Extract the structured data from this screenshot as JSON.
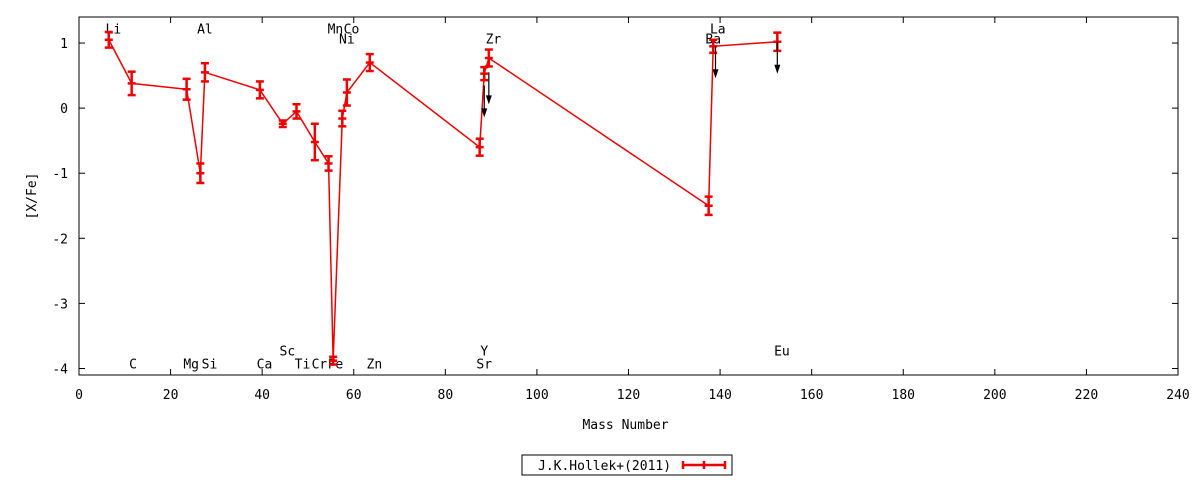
{
  "chart_data": {
    "type": "line",
    "xlabel": "Mass Number",
    "ylabel": "[X/Fe]",
    "xlim": [
      0,
      240
    ],
    "ylim": [
      -4.1,
      1.4
    ],
    "xticks": [
      0,
      20,
      40,
      60,
      80,
      100,
      120,
      140,
      160,
      180,
      200,
      220,
      240
    ],
    "yticks": [
      1,
      0,
      -1,
      -2,
      -3,
      -4
    ],
    "grid": false,
    "legend_position": "bottom-center",
    "series": [
      {
        "name": "J.K.Hollek+(2011)",
        "color": "#ee0000",
        "points": [
          {
            "x": 6.5,
            "y": 1.05,
            "err": 0.12
          },
          {
            "x": 11.5,
            "y": 0.38,
            "err": 0.18
          },
          {
            "x": 23.5,
            "y": 0.29,
            "err": 0.16
          },
          {
            "x": 26.5,
            "y": -1.0,
            "err": 0.15
          },
          {
            "x": 27.5,
            "y": 0.55,
            "err": 0.14
          },
          {
            "x": 39.5,
            "y": 0.28,
            "err": 0.13
          },
          {
            "x": 44.5,
            "y": -0.24,
            "err": 0.05
          },
          {
            "x": 47.5,
            "y": -0.05,
            "err": 0.11
          },
          {
            "x": 51.5,
            "y": -0.52,
            "err": 0.28
          },
          {
            "x": 54.5,
            "y": -0.85,
            "err": 0.11
          },
          {
            "x": 55.5,
            "y": -3.88,
            "err": 0.06
          },
          {
            "x": 57.5,
            "y": -0.16,
            "err": 0.12
          },
          {
            "x": 58.5,
            "y": 0.24,
            "err": 0.2
          },
          {
            "x": 63.5,
            "y": 0.7,
            "err": 0.13
          },
          {
            "x": 87.5,
            "y": -0.6,
            "err": 0.13
          },
          {
            "x": 88.5,
            "y": 0.53,
            "err": 0.1
          },
          {
            "x": 89.5,
            "y": 0.77,
            "err": 0.13
          },
          {
            "x": 137.5,
            "y": -1.5,
            "err": 0.14
          },
          {
            "x": 138.5,
            "y": 0.95,
            "err": 0.1
          },
          {
            "x": 152.5,
            "y": 1.02,
            "err": 0.14
          }
        ]
      }
    ],
    "upper_limits": [
      {
        "x": 88.5,
        "y": 0.35
      },
      {
        "x": 89.5,
        "y": 0.55
      },
      {
        "x": 139.0,
        "y": 0.95
      },
      {
        "x": 152.5,
        "y": 1.02
      }
    ],
    "element_labels": [
      {
        "text": "Li",
        "x": 7.5,
        "y": 1.22
      },
      {
        "text": "Al",
        "x": 27.5,
        "y": 1.22
      },
      {
        "text": "Mn",
        "x": 56.0,
        "y": 1.22
      },
      {
        "text": "Co",
        "x": 59.5,
        "y": 1.22
      },
      {
        "text": "Ni",
        "x": 58.5,
        "y": 1.07
      },
      {
        "text": "Zr",
        "x": 90.5,
        "y": 1.07
      },
      {
        "text": "La",
        "x": 139.5,
        "y": 1.22
      },
      {
        "text": "Ba",
        "x": 138.5,
        "y": 1.07
      },
      {
        "text": "C",
        "x": 11.8,
        "y": -3.92
      },
      {
        "text": "Mg",
        "x": 24.5,
        "y": -3.92
      },
      {
        "text": "Si",
        "x": 28.5,
        "y": -3.92
      },
      {
        "text": "Ca",
        "x": 40.5,
        "y": -3.92
      },
      {
        "text": "Sc",
        "x": 45.5,
        "y": -3.72
      },
      {
        "text": "Ti",
        "x": 48.8,
        "y": -3.92
      },
      {
        "text": "Cr",
        "x": 52.5,
        "y": -3.92
      },
      {
        "text": "Fe",
        "x": 56.0,
        "y": -3.92
      },
      {
        "text": "Zn",
        "x": 64.5,
        "y": -3.92
      },
      {
        "text": "Y",
        "x": 88.5,
        "y": -3.72
      },
      {
        "text": "Sr",
        "x": 88.5,
        "y": -3.92
      },
      {
        "text": "Eu",
        "x": 153.5,
        "y": -3.72
      }
    ]
  }
}
